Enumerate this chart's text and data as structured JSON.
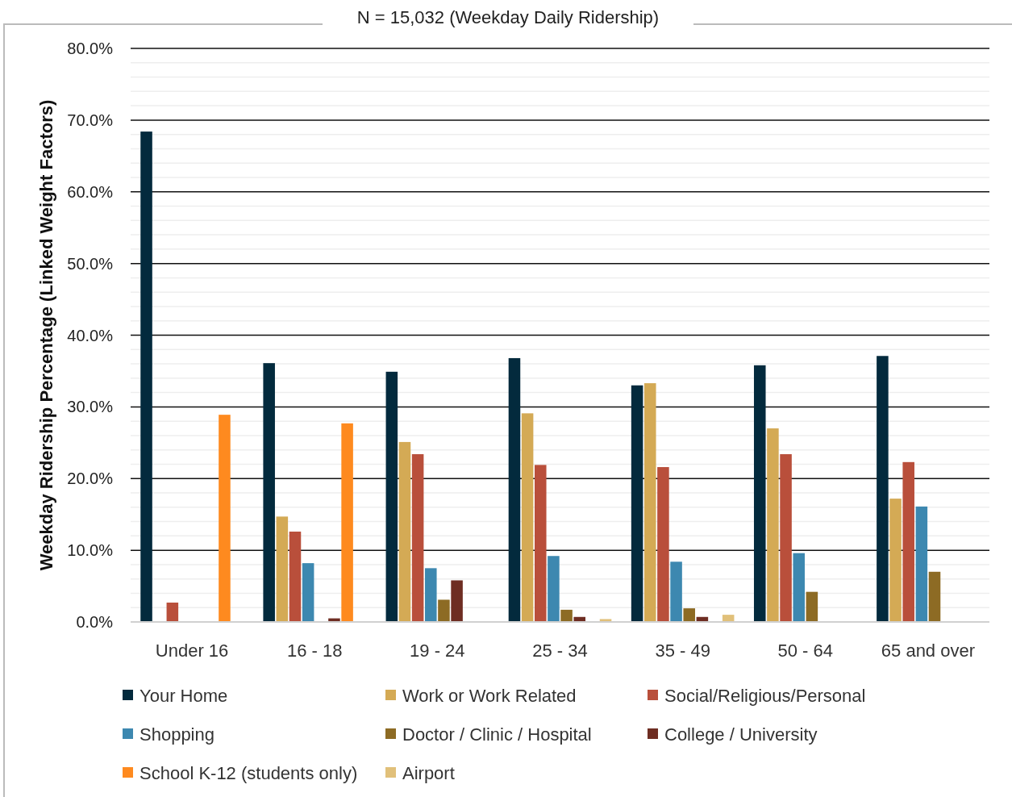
{
  "chart_data": {
    "type": "bar",
    "title": "N = 15,032 (Weekday Daily Ridership)",
    "ylabel": "Weekday Ridership Percentage (Linked Weight Factors)",
    "categories": [
      "Under 16",
      "16 - 18",
      "19 - 24",
      "25 - 34",
      "35 - 49",
      "50 - 64",
      "65 and over"
    ],
    "series": [
      {
        "name": "Your Home",
        "color": "#032a3d",
        "values": [
          68.4,
          36.1,
          34.9,
          36.8,
          33.0,
          35.8,
          37.1
        ]
      },
      {
        "name": "Work or Work Related",
        "color": "#d4aa55",
        "values": [
          null,
          14.7,
          25.1,
          29.1,
          33.3,
          27.0,
          17.2
        ]
      },
      {
        "name": "Social/Religious/Personal",
        "color": "#b94f3b",
        "values": [
          2.7,
          12.6,
          23.4,
          21.9,
          21.6,
          23.4,
          22.3
        ]
      },
      {
        "name": "Shopping",
        "color": "#3d88b0",
        "values": [
          null,
          8.2,
          7.5,
          9.2,
          8.4,
          9.6,
          16.1
        ]
      },
      {
        "name": "Doctor / Clinic / Hospital",
        "color": "#8d6b24",
        "values": [
          null,
          null,
          3.1,
          1.7,
          1.9,
          4.2,
          7.0
        ]
      },
      {
        "name": "College / University",
        "color": "#6e2d22",
        "values": [
          null,
          0.5,
          5.8,
          0.7,
          0.7,
          null,
          null
        ]
      },
      {
        "name": "School K-12 (students only)",
        "color": "#fe8a1f",
        "values": [
          28.9,
          27.7,
          null,
          null,
          null,
          null,
          null
        ]
      },
      {
        "name": "Airport",
        "color": "#e1c07a",
        "values": [
          null,
          null,
          null,
          0.4,
          1.0,
          null,
          null
        ]
      }
    ],
    "ylim": [
      0,
      80
    ],
    "yticks": [
      {
        "value": 0,
        "label": "0.0%"
      },
      {
        "value": 2,
        "label": null
      },
      {
        "value": 4,
        "label": null
      },
      {
        "value": 6,
        "label": null
      },
      {
        "value": 8,
        "label": null
      },
      {
        "value": 10,
        "label": "10.0%"
      },
      {
        "value": 12,
        "label": null
      },
      {
        "value": 14,
        "label": null
      },
      {
        "value": 16,
        "label": null
      },
      {
        "value": 18,
        "label": null
      },
      {
        "value": 20,
        "label": "20.0%"
      },
      {
        "value": 22,
        "label": null
      },
      {
        "value": 24,
        "label": null
      },
      {
        "value": 26,
        "label": null
      },
      {
        "value": 28,
        "label": null
      },
      {
        "value": 30,
        "label": "30.0%"
      },
      {
        "value": 32,
        "label": null
      },
      {
        "value": 34,
        "label": null
      },
      {
        "value": 36,
        "label": null
      },
      {
        "value": 38,
        "label": null
      },
      {
        "value": 40,
        "label": "40.0%"
      },
      {
        "value": 42,
        "label": null
      },
      {
        "value": 44,
        "label": null
      },
      {
        "value": 46,
        "label": null
      },
      {
        "value": 48,
        "label": null
      },
      {
        "value": 50,
        "label": "50.0%"
      },
      {
        "value": 52,
        "label": null
      },
      {
        "value": 54,
        "label": null
      },
      {
        "value": 56,
        "label": null
      },
      {
        "value": 58,
        "label": null
      },
      {
        "value": 60,
        "label": "60.0%"
      },
      {
        "value": 62,
        "label": null
      },
      {
        "value": 64,
        "label": null
      },
      {
        "value": 66,
        "label": null
      },
      {
        "value": 68,
        "label": null
      },
      {
        "value": 70,
        "label": "70.0%"
      },
      {
        "value": 72,
        "label": null
      },
      {
        "value": 74,
        "label": null
      },
      {
        "value": 76,
        "label": null
      },
      {
        "value": 78,
        "label": null
      },
      {
        "value": 80,
        "label": "80.0%"
      }
    ],
    "grid": "y",
    "legend": "bottom"
  }
}
